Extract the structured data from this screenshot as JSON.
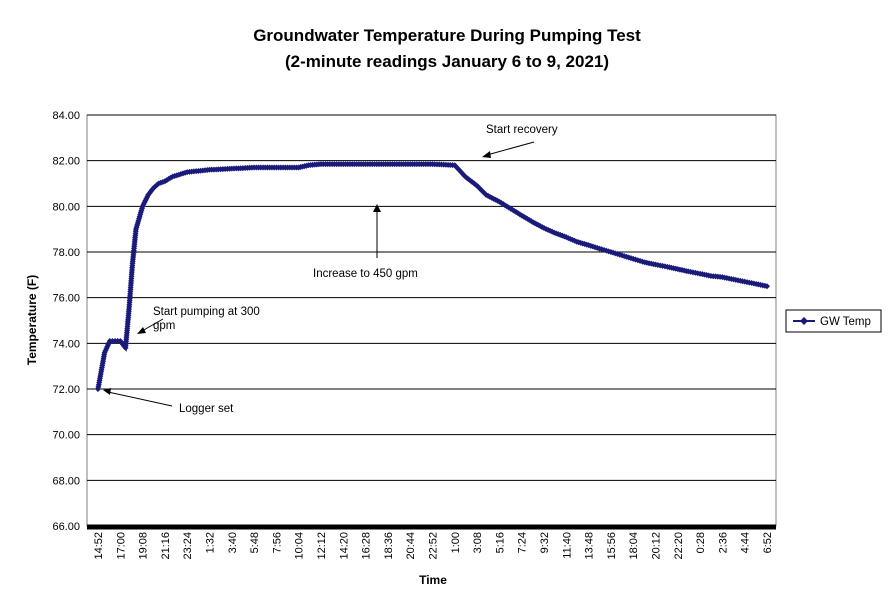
{
  "chart_data": {
    "type": "line",
    "title": "Groundwater Temperature During Pumping Test",
    "subtitle": "(2-minute readings January 6 to 9, 2021)",
    "xlabel": "Time",
    "ylabel": "Temperature (F)",
    "ylim": [
      66,
      84
    ],
    "y_ticks": [
      "66.00",
      "68.00",
      "70.00",
      "72.00",
      "74.00",
      "76.00",
      "78.00",
      "80.00",
      "82.00",
      "84.00"
    ],
    "x_ticks": [
      "14:52",
      "17:00",
      "19:08",
      "21:16",
      "23:24",
      "1:32",
      "3:40",
      "5:48",
      "7:56",
      "10:04",
      "12:12",
      "14:20",
      "16:28",
      "18:36",
      "20:44",
      "22:52",
      "1:00",
      "3:08",
      "5:16",
      "7:24",
      "9:32",
      "11:40",
      "13:48",
      "15:56",
      "18:04",
      "20:12",
      "22:20",
      "0:28",
      "2:36",
      "4:44",
      "6:52"
    ],
    "grid": "horizontal",
    "legend_position": "right",
    "series": [
      {
        "name": "GW Temp",
        "color": "#1a1a7a",
        "x": [
          "14:52",
          "15:30",
          "16:00",
          "16:30",
          "17:00",
          "17:30",
          "17:50",
          "18:10",
          "18:30",
          "19:08",
          "19:40",
          "20:10",
          "20:40",
          "21:16",
          "22:00",
          "23:24",
          "1:32",
          "3:40",
          "5:48",
          "7:56",
          "10:04",
          "11:00",
          "12:12",
          "14:20",
          "16:28",
          "18:36",
          "20:44",
          "22:52",
          "1:00",
          "2:00",
          "3:08",
          "4:00",
          "5:16",
          "6:20",
          "7:24",
          "8:30",
          "9:32",
          "10:30",
          "11:40",
          "12:40",
          "13:48",
          "14:50",
          "15:56",
          "17:00",
          "18:04",
          "19:10",
          "20:12",
          "21:20",
          "22:20",
          "23:20",
          "0:28",
          "1:30",
          "2:36",
          "3:40",
          "4:44",
          "5:50",
          "6:52"
        ],
        "values": [
          72.0,
          73.6,
          74.1,
          74.1,
          74.1,
          73.8,
          75.5,
          77.5,
          79.0,
          80.0,
          80.5,
          80.8,
          81.0,
          81.1,
          81.3,
          81.5,
          81.6,
          81.65,
          81.7,
          81.7,
          81.7,
          81.8,
          81.85,
          81.85,
          81.85,
          81.85,
          81.85,
          81.85,
          81.8,
          81.3,
          80.9,
          80.5,
          80.2,
          79.9,
          79.6,
          79.3,
          79.05,
          78.85,
          78.65,
          78.45,
          78.3,
          78.15,
          78.0,
          77.85,
          77.7,
          77.55,
          77.45,
          77.35,
          77.25,
          77.15,
          77.05,
          76.95,
          76.9,
          76.8,
          76.7,
          76.6,
          76.5
        ]
      }
    ],
    "annotations": [
      {
        "text": "Start recovery"
      },
      {
        "text": "Increase to 450 gpm"
      },
      {
        "text": "Start pumping at 300"
      },
      {
        "text": "gpm"
      },
      {
        "text": "Logger set"
      }
    ]
  }
}
